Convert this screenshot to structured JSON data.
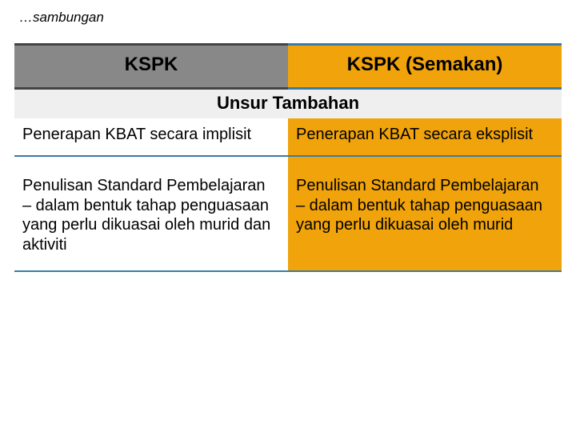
{
  "continuation_text": "…sambungan",
  "table": {
    "headers": {
      "left": {
        "label": "KSPK",
        "bg_color": "#888888",
        "border_color": "#444444"
      },
      "right": {
        "label": "KSPK (Semakan)",
        "bg_color": "#f0a30a",
        "border_color": "#3a7ca5"
      }
    },
    "section_label": "Unsur Tambahan",
    "section_bg": "#efefef",
    "rows": [
      {
        "left": "Penerapan KBAT secara implisit",
        "right": "Penerapan KBAT secara eksplisit"
      },
      {
        "left": "Penulisan Standard Pembelajaran\n– dalam bentuk tahap penguasaan yang perlu dikuasai oleh murid dan aktiviti",
        "right": "Penulisan Standard Pembelajaran\n– dalam bentuk tahap penguasaan yang perlu dikuasai oleh murid"
      }
    ],
    "colors": {
      "left_cell_bg": "#ffffff",
      "right_cell_bg": "#f0a30a",
      "row_border": "#3a7ca5",
      "text_color": "#000000"
    },
    "font": {
      "header_size_pt": 24,
      "section_size_pt": 22,
      "cell_size_pt": 20,
      "continuation_size_pt": 17,
      "family": "Arial"
    }
  }
}
